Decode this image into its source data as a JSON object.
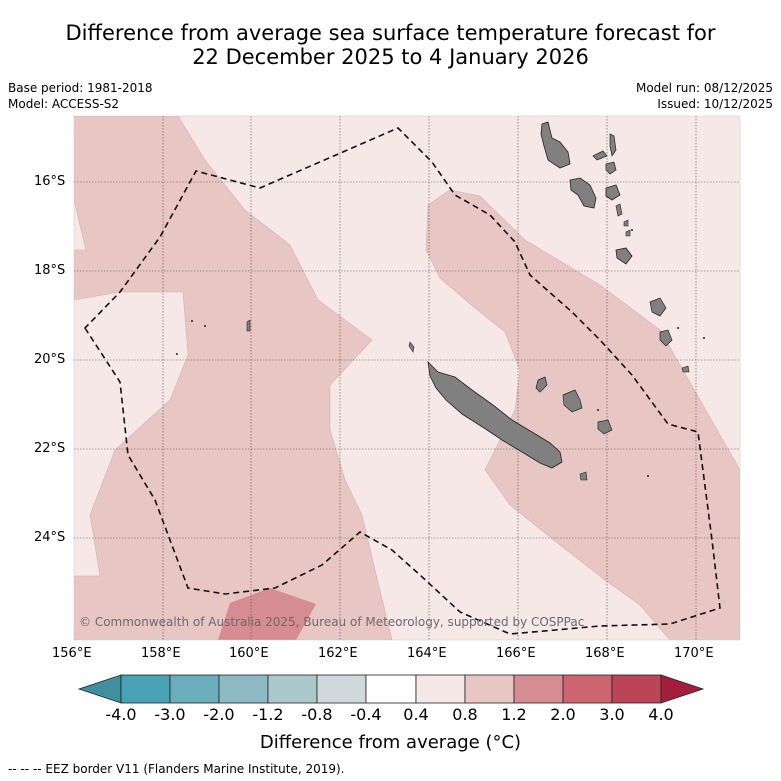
{
  "title": {
    "line1": "Difference from average sea surface temperature forecast for",
    "line2": "22 December 2025 to 4 January 2026"
  },
  "meta": {
    "base_period": "Base period: 1981-2018",
    "model": "Model: ACCESS-S2",
    "model_run": "Model run: 08/12/2025",
    "issued": "Issued: 10/12/2025"
  },
  "map": {
    "copyright": "© Commonwealth of Australia 2025, Bureau of Meteorology, supported by COSPPac",
    "lon_labels": [
      "156°E",
      "158°E",
      "160°E",
      "162°E",
      "164°E",
      "166°E",
      "168°E",
      "170°E"
    ],
    "lat_labels": [
      "16°S",
      "18°S",
      "20°S",
      "22°S",
      "24°S"
    ],
    "colors": {
      "land": "#808080",
      "anom_0_4_0_8": "#f5e8e7",
      "anom_0_8_1_2": "#e8c6c3",
      "anom_1_2_2_0": "#d68c93"
    }
  },
  "colorbar": {
    "title": "Difference from average (°C)",
    "tick_labels": [
      "-4.0",
      "-3.0",
      "-2.0",
      "-1.2",
      "-0.8",
      "-0.4",
      "0.4",
      "0.8",
      "1.2",
      "2.0",
      "3.0",
      "4.0"
    ],
    "colors": [
      "#3f8f9d",
      "#48a2b3",
      "#6aaebd",
      "#8db9c5",
      "#abc8cd",
      "#cfd9db",
      "#ffffff",
      "#f5e8e7",
      "#e8c6c3",
      "#d68c93",
      "#cc6570",
      "#bb4556",
      "#a51d3c"
    ]
  },
  "footnote": "--  --  -- EEZ border V11 (Flanders Marine Institute, 2019)."
}
